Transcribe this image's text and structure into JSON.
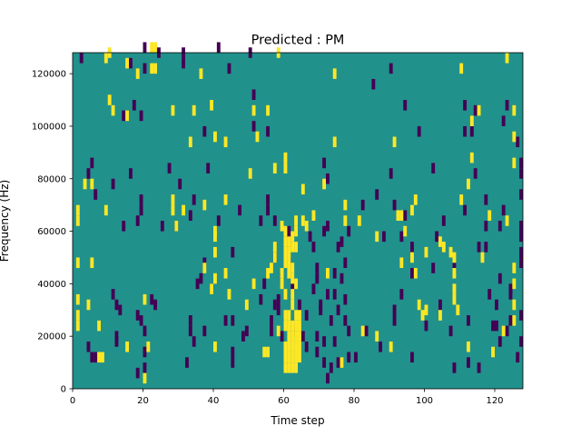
{
  "chart_data": {
    "type": "heatmap",
    "title": "Predicted : PM",
    "xlabel": "Time step",
    "ylabel": "Frequency (Hz)",
    "xlim": [
      0,
      128
    ],
    "ylim": [
      0,
      128000
    ],
    "x_ticks": [
      0,
      20,
      40,
      60,
      80,
      100,
      120
    ],
    "y_ticks": [
      0,
      20000,
      40000,
      60000,
      80000,
      100000,
      120000
    ],
    "x_tick_labels": [
      "0",
      "20",
      "40",
      "60",
      "80",
      "100",
      "120"
    ],
    "y_tick_labels": [
      "0",
      "20000",
      "40000",
      "60000",
      "80000",
      "100000",
      "120000"
    ],
    "value_levels": [
      -1,
      0,
      1
    ],
    "colors": {
      "background": "#21918c",
      "low": "#440154",
      "high": "#fde725"
    },
    "frequency_bin_hz": 1000,
    "cells_low": [
      [
        2,
        124,
        4
      ],
      [
        4,
        14,
        4
      ],
      [
        4,
        80,
        4
      ],
      [
        5,
        84,
        4
      ],
      [
        5,
        10,
        4
      ],
      [
        6,
        72,
        4
      ],
      [
        6,
        10,
        4
      ],
      [
        11,
        76,
        4
      ],
      [
        11,
        34,
        4
      ],
      [
        12,
        30,
        4
      ],
      [
        12,
        16,
        4
      ],
      [
        12,
        18,
        4
      ],
      [
        13,
        28,
        4
      ],
      [
        14,
        60,
        4
      ],
      [
        14,
        102,
        4
      ],
      [
        16,
        80,
        4
      ],
      [
        16,
        122,
        4
      ],
      [
        17,
        106,
        4
      ],
      [
        18,
        62,
        4
      ],
      [
        18,
        26,
        4
      ],
      [
        18,
        4,
        4
      ],
      [
        19,
        70,
        4
      ],
      [
        19,
        66,
        4
      ],
      [
        19,
        24,
        4
      ],
      [
        19,
        102,
        4
      ],
      [
        20,
        128,
        4
      ],
      [
        20,
        120,
        4
      ],
      [
        20,
        12,
        4
      ],
      [
        20,
        20,
        4
      ],
      [
        20,
        6,
        4
      ],
      [
        22,
        32,
        4
      ],
      [
        23,
        30,
        4
      ],
      [
        24,
        126,
        4
      ],
      [
        25,
        60,
        4
      ],
      [
        27,
        82,
        4
      ],
      [
        29,
        60,
        4
      ],
      [
        30,
        76,
        4
      ],
      [
        31,
        126,
        4
      ],
      [
        31,
        122,
        4
      ],
      [
        32,
        8,
        4
      ],
      [
        33,
        64,
        4
      ],
      [
        33,
        20,
        4
      ],
      [
        33,
        24,
        4
      ],
      [
        34,
        70,
        4
      ],
      [
        34,
        16,
        4
      ],
      [
        35,
        38,
        4
      ],
      [
        36,
        40,
        4
      ],
      [
        37,
        46,
        4
      ],
      [
        37,
        96,
        4
      ],
      [
        37,
        20,
        4
      ],
      [
        38,
        82,
        4
      ],
      [
        39,
        36,
        4
      ],
      [
        41,
        128,
        4
      ],
      [
        41,
        62,
        4
      ],
      [
        43,
        24,
        4
      ],
      [
        44,
        120,
        4
      ],
      [
        45,
        50,
        4
      ],
      [
        45,
        24,
        4
      ],
      [
        45,
        12,
        4
      ],
      [
        45,
        8,
        4
      ],
      [
        47,
        66,
        4
      ],
      [
        48,
        18,
        4
      ],
      [
        49,
        20,
        4
      ],
      [
        50,
        126,
        4
      ],
      [
        51,
        110,
        4
      ],
      [
        51,
        98,
        4
      ],
      [
        53,
        62,
        4
      ],
      [
        53,
        32,
        4
      ],
      [
        54,
        38,
        4
      ],
      [
        55,
        96,
        4
      ],
      [
        55,
        66,
        4
      ],
      [
        55,
        70,
        4
      ],
      [
        56,
        20,
        4
      ],
      [
        56,
        24,
        4
      ],
      [
        57,
        30,
        4
      ],
      [
        57,
        48,
        4
      ],
      [
        57,
        62,
        4
      ],
      [
        58,
        32,
        4
      ],
      [
        58,
        28,
        4
      ],
      [
        59,
        40,
        4
      ],
      [
        59,
        18,
        4
      ],
      [
        61,
        58,
        4
      ],
      [
        61,
        46,
        4
      ],
      [
        61,
        54,
        4
      ],
      [
        62,
        36,
        4
      ],
      [
        63,
        20,
        4
      ],
      [
        64,
        30,
        4
      ],
      [
        65,
        18,
        4
      ],
      [
        66,
        14,
        4
      ],
      [
        66,
        26,
        4
      ],
      [
        67,
        56,
        4
      ],
      [
        68,
        36,
        4
      ],
      [
        68,
        52,
        4
      ],
      [
        69,
        44,
        4
      ],
      [
        69,
        40,
        4
      ],
      [
        69,
        18,
        4
      ],
      [
        69,
        12,
        4
      ],
      [
        70,
        30,
        4
      ],
      [
        70,
        28,
        4
      ],
      [
        71,
        84,
        4
      ],
      [
        71,
        58,
        4
      ],
      [
        71,
        16,
        4
      ],
      [
        71,
        8,
        4
      ],
      [
        72,
        78,
        4
      ],
      [
        72,
        60,
        4
      ],
      [
        72,
        34,
        4
      ],
      [
        72,
        2,
        4
      ],
      [
        73,
        6,
        4
      ],
      [
        73,
        24,
        4
      ],
      [
        74,
        16,
        4
      ],
      [
        74,
        42,
        4
      ],
      [
        74,
        34,
        4
      ],
      [
        75,
        8,
        4
      ],
      [
        75,
        28,
        4
      ],
      [
        75,
        52,
        4
      ],
      [
        76,
        54,
        4
      ],
      [
        76,
        40,
        4
      ],
      [
        77,
        46,
        4
      ],
      [
        77,
        32,
        4
      ],
      [
        77,
        24,
        4
      ],
      [
        78,
        58,
        4
      ],
      [
        78,
        20,
        4
      ],
      [
        78,
        10,
        4
      ],
      [
        80,
        10,
        4
      ],
      [
        82,
        68,
        4
      ],
      [
        83,
        20,
        4
      ],
      [
        85,
        114,
        4
      ],
      [
        86,
        72,
        4
      ],
      [
        87,
        14,
        4
      ],
      [
        88,
        56,
        4
      ],
      [
        90,
        120,
        4
      ],
      [
        90,
        80,
        4
      ],
      [
        91,
        68,
        4
      ],
      [
        91,
        24,
        4
      ],
      [
        91,
        28,
        4
      ],
      [
        93,
        56,
        4
      ],
      [
        93,
        34,
        4
      ],
      [
        94,
        64,
        4
      ],
      [
        94,
        106,
        4
      ],
      [
        96,
        52,
        4
      ],
      [
        96,
        42,
        4
      ],
      [
        96,
        10,
        4
      ],
      [
        98,
        96,
        4
      ],
      [
        100,
        22,
        4
      ],
      [
        102,
        44,
        4
      ],
      [
        102,
        82,
        4
      ],
      [
        103,
        56,
        4
      ],
      [
        104,
        30,
        4
      ],
      [
        105,
        62,
        4
      ],
      [
        107,
        20,
        4
      ],
      [
        108,
        6,
        4
      ],
      [
        108,
        44,
        4
      ],
      [
        111,
        96,
        4
      ],
      [
        111,
        106,
        4
      ],
      [
        111,
        66,
        4
      ],
      [
        112,
        8,
        4
      ],
      [
        112,
        24,
        4
      ],
      [
        113,
        96,
        4
      ],
      [
        114,
        104,
        4
      ],
      [
        114,
        80,
        4
      ],
      [
        115,
        52,
        4
      ],
      [
        115,
        6,
        4
      ],
      [
        117,
        60,
        4
      ],
      [
        117,
        70,
        4
      ],
      [
        117,
        52,
        4
      ],
      [
        118,
        34,
        4
      ],
      [
        119,
        22,
        4
      ],
      [
        120,
        22,
        4
      ],
      [
        120,
        30,
        4
      ],
      [
        121,
        60,
        4
      ],
      [
        121,
        40,
        4
      ],
      [
        121,
        16,
        4
      ],
      [
        122,
        66,
        4
      ],
      [
        122,
        100,
        4
      ],
      [
        123,
        20,
        4
      ],
      [
        123,
        106,
        4
      ],
      [
        124,
        34,
        4
      ],
      [
        124,
        36,
        4
      ],
      [
        124,
        24,
        4
      ],
      [
        126,
        10,
        4
      ],
      [
        126,
        92,
        4
      ],
      [
        127,
        72,
        4
      ],
      [
        127,
        84,
        4
      ],
      [
        127,
        50,
        4
      ],
      [
        127,
        80,
        4
      ],
      [
        127,
        56,
        4
      ],
      [
        127,
        26,
        4
      ],
      [
        127,
        16,
        4
      ],
      [
        127,
        60,
        4
      ],
      [
        127,
        46,
        4
      ]
    ],
    "cells_high": [
      [
        1,
        62,
        4
      ],
      [
        1,
        66,
        4
      ],
      [
        1,
        46,
        4
      ],
      [
        1,
        32,
        4
      ],
      [
        1,
        26,
        4
      ],
      [
        1,
        22,
        4
      ],
      [
        3,
        76,
        4
      ],
      [
        4,
        30,
        4
      ],
      [
        5,
        76,
        4
      ],
      [
        5,
        46,
        4
      ],
      [
        7,
        22,
        4
      ],
      [
        7,
        10,
        4
      ],
      [
        8,
        10,
        4
      ],
      [
        9,
        124,
        4
      ],
      [
        9,
        66,
        4
      ],
      [
        10,
        108,
        4
      ],
      [
        10,
        126,
        4
      ],
      [
        11,
        104,
        4
      ],
      [
        15,
        122,
        4
      ],
      [
        15,
        102,
        4
      ],
      [
        15,
        14,
        4
      ],
      [
        18,
        118,
        4
      ],
      [
        20,
        32,
        4
      ],
      [
        20,
        2,
        4
      ],
      [
        21,
        14,
        4
      ],
      [
        22,
        128,
        4
      ],
      [
        22,
        120,
        4
      ],
      [
        23,
        128,
        4
      ],
      [
        23,
        120,
        4
      ],
      [
        28,
        70,
        4
      ],
      [
        28,
        66,
        4
      ],
      [
        28,
        104,
        4
      ],
      [
        29,
        60,
        4
      ],
      [
        31,
        66,
        4
      ],
      [
        33,
        92,
        4
      ],
      [
        34,
        104,
        4
      ],
      [
        36,
        118,
        4
      ],
      [
        37,
        68,
        4
      ],
      [
        37,
        44,
        4
      ],
      [
        39,
        106,
        4
      ],
      [
        39,
        36,
        4
      ],
      [
        40,
        94,
        4
      ],
      [
        40,
        14,
        4
      ],
      [
        40,
        58,
        4
      ],
      [
        40,
        40,
        4
      ],
      [
        40,
        50,
        4
      ],
      [
        40,
        56,
        4
      ],
      [
        43,
        92,
        4
      ],
      [
        43,
        70,
        4
      ],
      [
        43,
        42,
        4
      ],
      [
        44,
        34,
        4
      ],
      [
        49,
        30,
        4
      ],
      [
        50,
        80,
        4
      ],
      [
        51,
        38,
        4
      ],
      [
        51,
        104,
        4
      ],
      [
        52,
        94,
        4
      ],
      [
        54,
        12,
        4
      ],
      [
        55,
        12,
        4
      ],
      [
        55,
        42,
        4
      ],
      [
        55,
        104,
        4
      ],
      [
        56,
        44,
        4
      ],
      [
        57,
        82,
        4
      ],
      [
        57,
        52,
        4
      ],
      [
        57,
        48,
        4
      ],
      [
        58,
        20,
        4
      ],
      [
        58,
        126,
        4
      ],
      [
        59,
        42,
        4
      ],
      [
        59,
        60,
        4
      ],
      [
        59,
        38,
        4
      ],
      [
        60,
        50,
        4
      ],
      [
        60,
        82,
        4
      ],
      [
        60,
        10,
        4
      ],
      [
        60,
        22,
        4
      ],
      [
        60,
        86,
        4
      ],
      [
        60,
        34,
        4
      ],
      [
        60,
        14,
        4
      ],
      [
        60,
        26,
        4
      ],
      [
        60,
        54,
        4
      ],
      [
        60,
        58,
        4
      ],
      [
        60,
        46,
        4
      ],
      [
        60,
        6,
        4
      ],
      [
        61,
        26,
        4
      ],
      [
        61,
        46,
        4
      ],
      [
        61,
        14,
        4
      ],
      [
        61,
        18,
        4
      ],
      [
        61,
        50,
        4
      ],
      [
        61,
        10,
        4
      ],
      [
        61,
        54,
        4
      ],
      [
        61,
        22,
        4
      ],
      [
        61,
        6,
        4
      ],
      [
        61,
        42,
        4
      ],
      [
        62,
        40,
        4
      ],
      [
        62,
        6,
        4
      ],
      [
        62,
        34,
        4
      ],
      [
        62,
        10,
        4
      ],
      [
        62,
        18,
        4
      ],
      [
        62,
        44,
        4
      ],
      [
        62,
        56,
        4
      ],
      [
        62,
        14,
        4
      ],
      [
        62,
        30,
        4
      ],
      [
        62,
        52,
        4
      ],
      [
        62,
        22,
        4
      ],
      [
        63,
        52,
        4
      ],
      [
        63,
        58,
        4
      ],
      [
        63,
        6,
        4
      ],
      [
        63,
        10,
        4
      ],
      [
        63,
        18,
        4
      ],
      [
        63,
        62,
        4
      ],
      [
        63,
        14,
        4
      ],
      [
        63,
        22,
        4
      ],
      [
        63,
        38,
        4
      ],
      [
        63,
        26,
        4
      ],
      [
        64,
        26,
        4
      ],
      [
        64,
        10,
        4
      ],
      [
        64,
        14,
        4
      ],
      [
        64,
        18,
        4
      ],
      [
        64,
        22,
        4
      ],
      [
        65,
        62,
        4
      ],
      [
        65,
        74,
        4
      ],
      [
        66,
        60,
        4
      ],
      [
        68,
        64,
        4
      ],
      [
        71,
        76,
        4
      ],
      [
        72,
        42,
        4
      ],
      [
        74,
        92,
        4
      ],
      [
        74,
        118,
        4
      ],
      [
        76,
        8,
        4
      ],
      [
        77,
        68,
        4
      ],
      [
        77,
        62,
        4
      ],
      [
        81,
        62,
        4
      ],
      [
        82,
        20,
        4
      ],
      [
        86,
        18,
        4
      ],
      [
        86,
        56,
        4
      ],
      [
        90,
        14,
        4
      ],
      [
        91,
        92,
        4
      ],
      [
        92,
        64,
        4
      ],
      [
        93,
        64,
        4
      ],
      [
        93,
        46,
        4
      ],
      [
        94,
        58,
        4
      ],
      [
        96,
        48,
        4
      ],
      [
        96,
        66,
        4
      ],
      [
        97,
        42,
        4
      ],
      [
        97,
        70,
        4
      ],
      [
        98,
        30,
        4
      ],
      [
        99,
        26,
        4
      ],
      [
        100,
        28,
        4
      ],
      [
        100,
        50,
        4
      ],
      [
        104,
        26,
        4
      ],
      [
        104,
        54,
        4
      ],
      [
        105,
        52,
        4
      ],
      [
        107,
        50,
        4
      ],
      [
        108,
        48,
        4
      ],
      [
        108,
        32,
        4
      ],
      [
        108,
        36,
        4
      ],
      [
        108,
        42,
        4
      ],
      [
        109,
        28,
        4
      ],
      [
        110,
        120,
        4
      ],
      [
        110,
        70,
        4
      ],
      [
        112,
        76,
        4
      ],
      [
        112,
        14,
        4
      ],
      [
        113,
        86,
        4
      ],
      [
        113,
        100,
        4
      ],
      [
        115,
        104,
        4
      ],
      [
        116,
        48,
        4
      ],
      [
        118,
        64,
        4
      ],
      [
        119,
        12,
        4
      ],
      [
        122,
        20,
        4
      ],
      [
        123,
        124,
        4
      ],
      [
        123,
        62,
        4
      ],
      [
        125,
        44,
        4
      ],
      [
        125,
        84,
        4
      ],
      [
        125,
        38,
        4
      ],
      [
        125,
        30,
        4
      ],
      [
        125,
        24,
        4
      ],
      [
        125,
        104,
        4
      ],
      [
        125,
        94,
        4
      ]
    ]
  }
}
